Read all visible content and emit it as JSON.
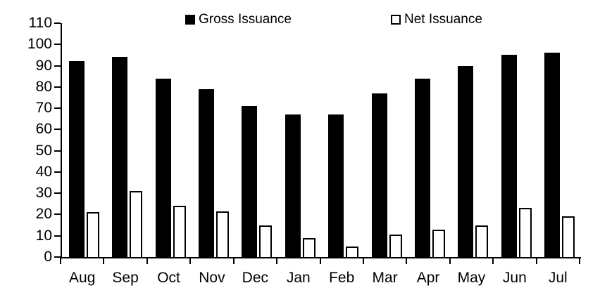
{
  "chart_data": {
    "type": "bar",
    "title": "",
    "categories": [
      "Aug",
      "Sep",
      "Oct",
      "Nov",
      "Dec",
      "Jan",
      "Feb",
      "Mar",
      "Apr",
      "May",
      "Jun",
      "Jul"
    ],
    "series": [
      {
        "name": "Gross Issuance",
        "fill": "#000000",
        "outline": "#000000",
        "values": [
          92,
          94,
          84,
          79,
          71,
          67,
          67,
          77,
          84,
          90,
          95,
          96
        ]
      },
      {
        "name": "Net Issuance",
        "fill": "#ffffff",
        "outline": "#000000",
        "values": [
          21,
          31,
          24,
          21.5,
          15,
          9,
          5,
          10.5,
          13,
          15,
          23,
          19
        ]
      }
    ],
    "xlabel": "",
    "ylabel": "",
    "ylim": [
      0,
      110
    ],
    "yticks": [
      0,
      10,
      20,
      30,
      40,
      50,
      60,
      70,
      80,
      90,
      100,
      110
    ],
    "grid": false,
    "legend_position": "top",
    "axis_color": "#000000",
    "background": "#ffffff"
  }
}
